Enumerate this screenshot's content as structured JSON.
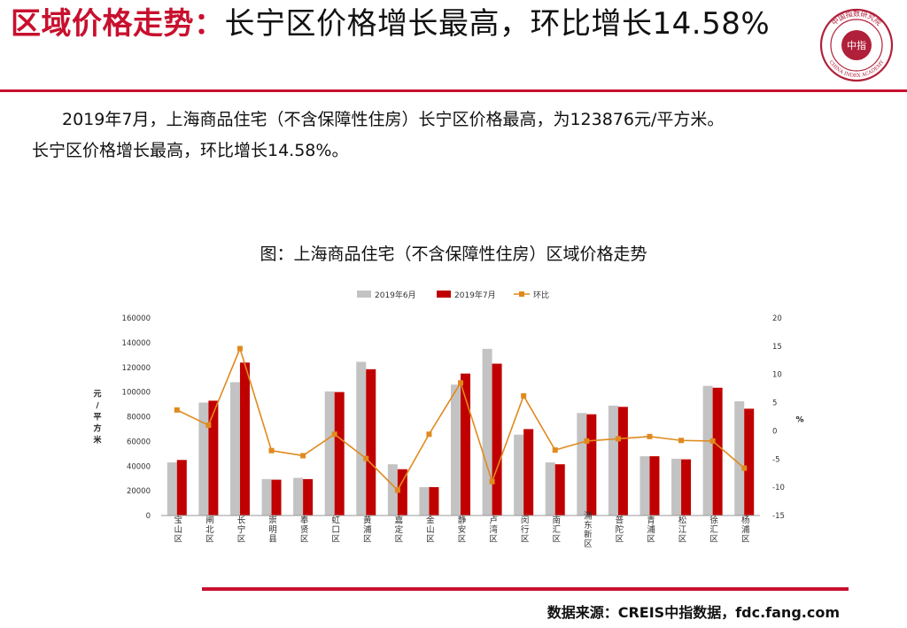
{
  "header": {
    "title_highlight": "区域价格走势：",
    "title_rest": "长宁区价格增长最高，环比增长14.58%",
    "logo": {
      "name": "china-index-academy-seal",
      "inner_text": "中指",
      "ring_text": "中国指数研究院",
      "english_text": "CHINA INDEX ACADEMY"
    }
  },
  "body": {
    "paragraph_1": "2019年7月，上海商品住宅（不含保障性住房）长宁区价格最高，为123876元/平方米。",
    "paragraph_2": "长宁区价格增长最高，环比增长14.58%。"
  },
  "figure": {
    "caption": "图：上海商品住宅（不含保障性住房）区域价格走势"
  },
  "chart_data": {
    "type": "bar",
    "title": "",
    "categories": [
      "宝山区",
      "闸北区",
      "长宁区",
      "崇明县",
      "奉贤区",
      "虹口区",
      "黄浦区",
      "嘉定区",
      "金山区",
      "静安区",
      "卢湾区",
      "闵行区",
      "南汇区",
      "浦东新区",
      "普陀区",
      "青浦区",
      "松江区",
      "徐汇区",
      "杨浦区"
    ],
    "series": [
      {
        "name": "2019年6月",
        "type": "bar",
        "axis": "left",
        "values": [
          43000,
          91500,
          108000,
          29500,
          30500,
          100500,
          124500,
          41500,
          23000,
          106000,
          135000,
          65500,
          43000,
          83000,
          89000,
          48000,
          46000,
          105000,
          92500
        ]
      },
      {
        "name": "2019年7月",
        "type": "bar",
        "axis": "left",
        "values": [
          45000,
          93000,
          123876,
          29000,
          29500,
          100000,
          118500,
          37500,
          23000,
          115000,
          123000,
          70000,
          41500,
          82000,
          88000,
          48000,
          45500,
          103500,
          86500
        ]
      },
      {
        "name": "环比",
        "type": "line",
        "axis": "right",
        "values": [
          3.7,
          1.0,
          14.58,
          -3.5,
          -4.4,
          -0.6,
          -4.9,
          -10.5,
          -0.6,
          8.5,
          -9.0,
          6.2,
          -3.4,
          -1.8,
          -1.4,
          -1.0,
          -1.7,
          -1.8,
          -6.6
        ]
      }
    ],
    "ylabel": "元/平方米",
    "y2label": "%",
    "ylim": [
      0,
      160000
    ],
    "y2lim": [
      -15,
      20
    ],
    "yticks": [
      "0",
      "20000",
      "40000",
      "60000",
      "80000",
      "100000",
      "120000",
      "140000",
      "160000"
    ],
    "y2ticks": [
      "-15",
      "-10",
      "-5",
      "0",
      "5",
      "10",
      "15",
      "20"
    ],
    "legend_position": "top",
    "grid": false,
    "colors": {
      "2019年6月": "#c3c3c3",
      "2019年7月": "#c00000",
      "环比": "#e08a1e"
    }
  },
  "footer": {
    "source": "数据来源：CREIS中指数据，fdc.fang.com"
  },
  "theme": {
    "accent": "#c8102e"
  }
}
